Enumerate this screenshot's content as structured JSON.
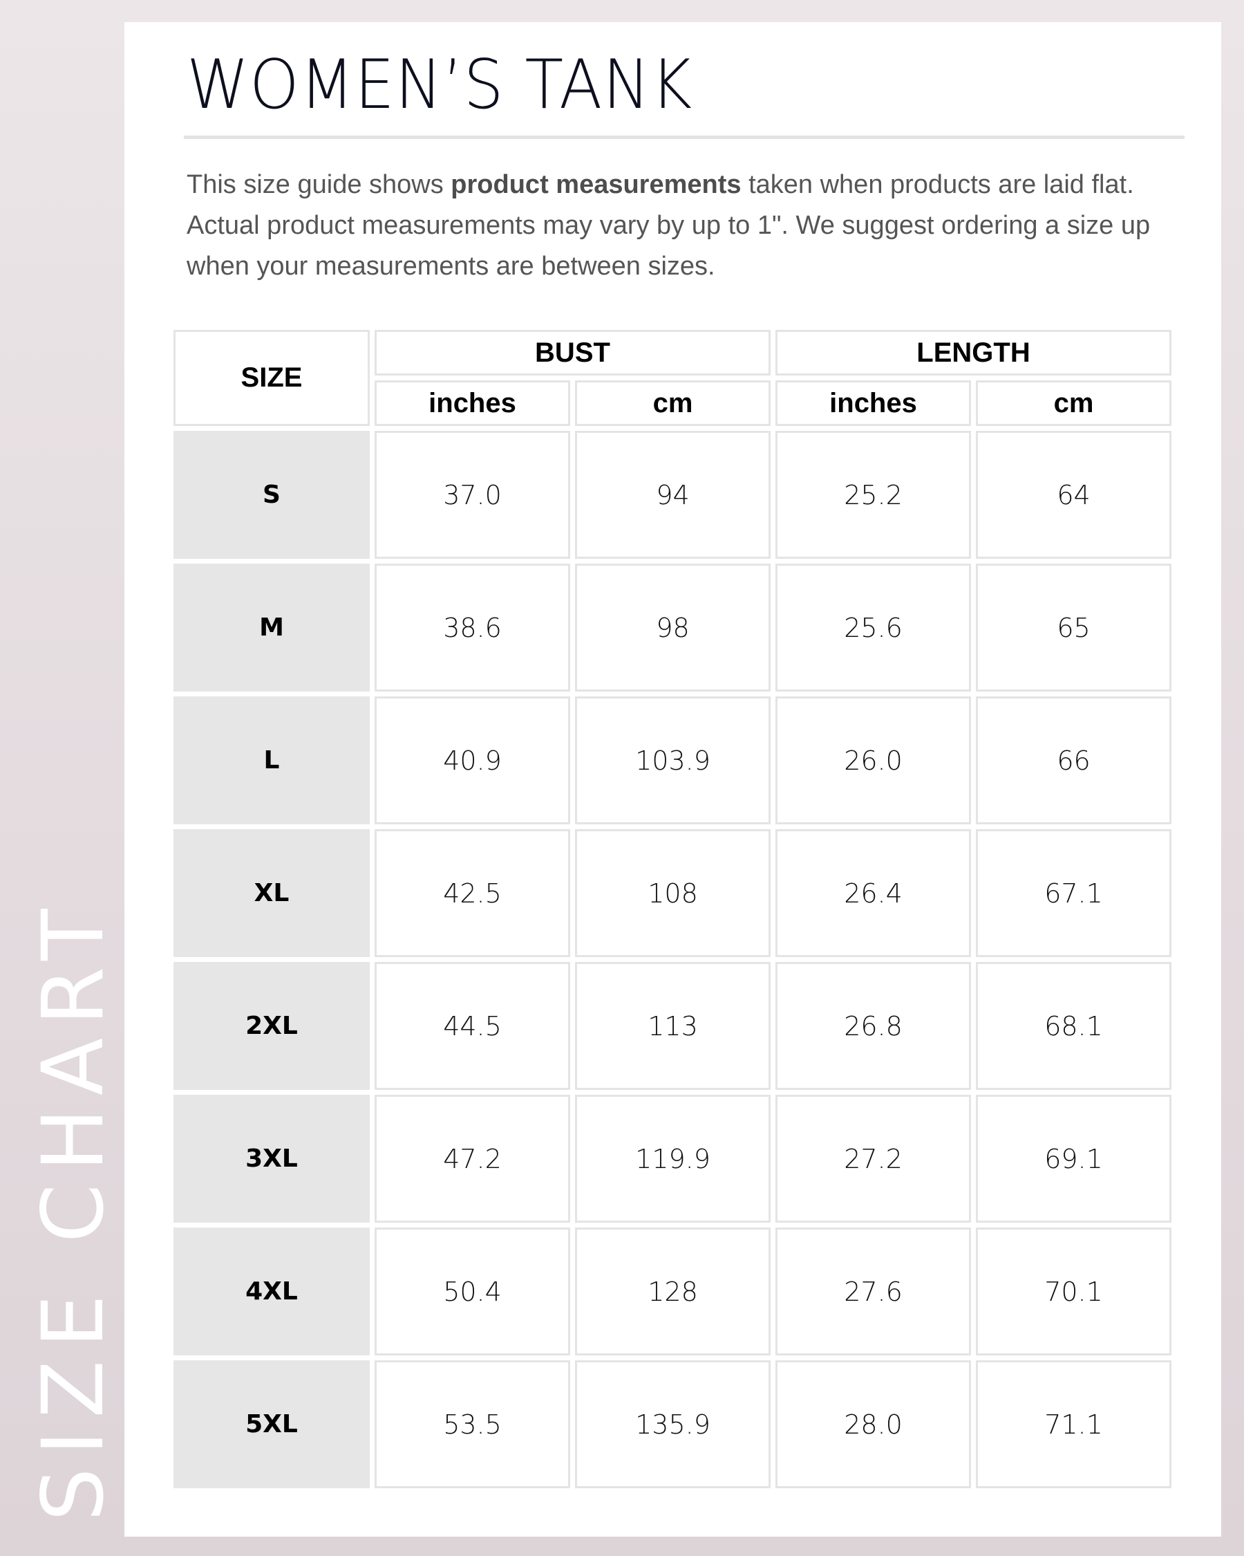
{
  "side_label": "SIZE CHART",
  "title": "WOMEN’S TANK",
  "intro": {
    "part1": "This size guide shows ",
    "bold": "product measurements",
    "part2": " taken when products are laid flat. Actual product measurements may vary by up to 1\". We suggest ordering a size up when your measurements are between sizes."
  },
  "table": {
    "size_header": "SIZE",
    "groups": [
      "BUST",
      "LENGTH"
    ],
    "units": [
      "inches",
      "cm",
      "inches",
      "cm"
    ],
    "rows": [
      {
        "size": "S",
        "values": [
          "37.0",
          "94",
          "25.2",
          "64"
        ]
      },
      {
        "size": "M",
        "values": [
          "38.6",
          "98",
          "25.6",
          "65"
        ]
      },
      {
        "size": "L",
        "values": [
          "40.9",
          "103.9",
          "26.0",
          "66"
        ]
      },
      {
        "size": "XL",
        "values": [
          "42.5",
          "108",
          "26.4",
          "67.1"
        ]
      },
      {
        "size": "2XL",
        "values": [
          "44.5",
          "113",
          "26.8",
          "68.1"
        ]
      },
      {
        "size": "3XL",
        "values": [
          "47.2",
          "119.9",
          "27.2",
          "69.1"
        ]
      },
      {
        "size": "4XL",
        "values": [
          "50.4",
          "128",
          "27.6",
          "70.1"
        ]
      },
      {
        "size": "5XL",
        "values": [
          "53.5",
          "135.9",
          "28.0",
          "71.1"
        ]
      }
    ]
  },
  "colors": {
    "background": "#e4dcdf",
    "size_cell": "#e6e6e6",
    "border": "#e4e4e4",
    "title": "#0d0f1e"
  }
}
